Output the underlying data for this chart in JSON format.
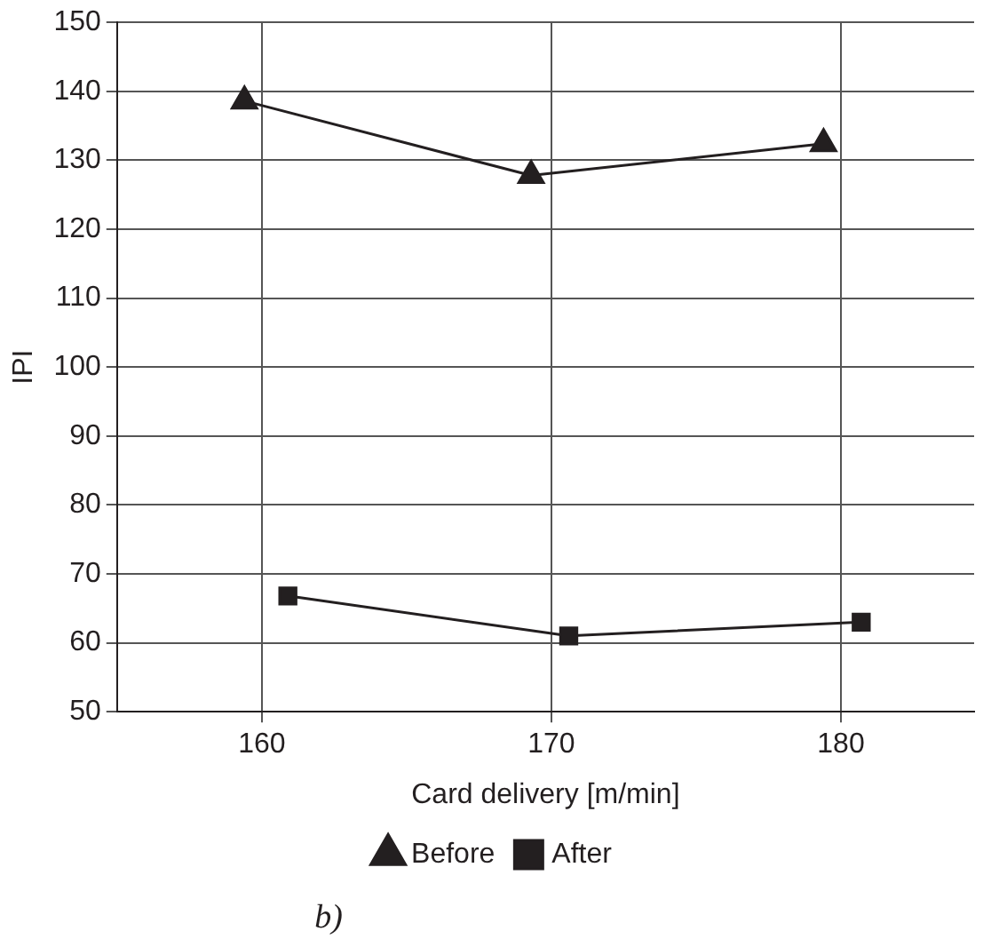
{
  "chart_data": {
    "type": "line",
    "xlabel": "Card delivery [m/min]",
    "ylabel": "IPI",
    "xlim": [
      155,
      184.6
    ],
    "xticks": [
      160,
      170,
      180
    ],
    "ylim": [
      50,
      150
    ],
    "yticks": [
      50,
      60,
      70,
      80,
      90,
      100,
      110,
      120,
      130,
      140,
      150
    ],
    "series": [
      {
        "name": "Before",
        "color": "#231f20",
        "marker": "triangle",
        "x": [
          159.4,
          169.3,
          179.4
        ],
        "values": [
          138.6,
          127.8,
          132.4
        ]
      },
      {
        "name": "After",
        "color": "#231f20",
        "marker": "square",
        "x": [
          160.9,
          170.6,
          180.7
        ],
        "values": [
          66.8,
          61.0,
          63.0
        ]
      }
    ],
    "grid": true,
    "legend": "bottom",
    "line_style": "solid",
    "annotations": [
      "b)"
    ]
  }
}
